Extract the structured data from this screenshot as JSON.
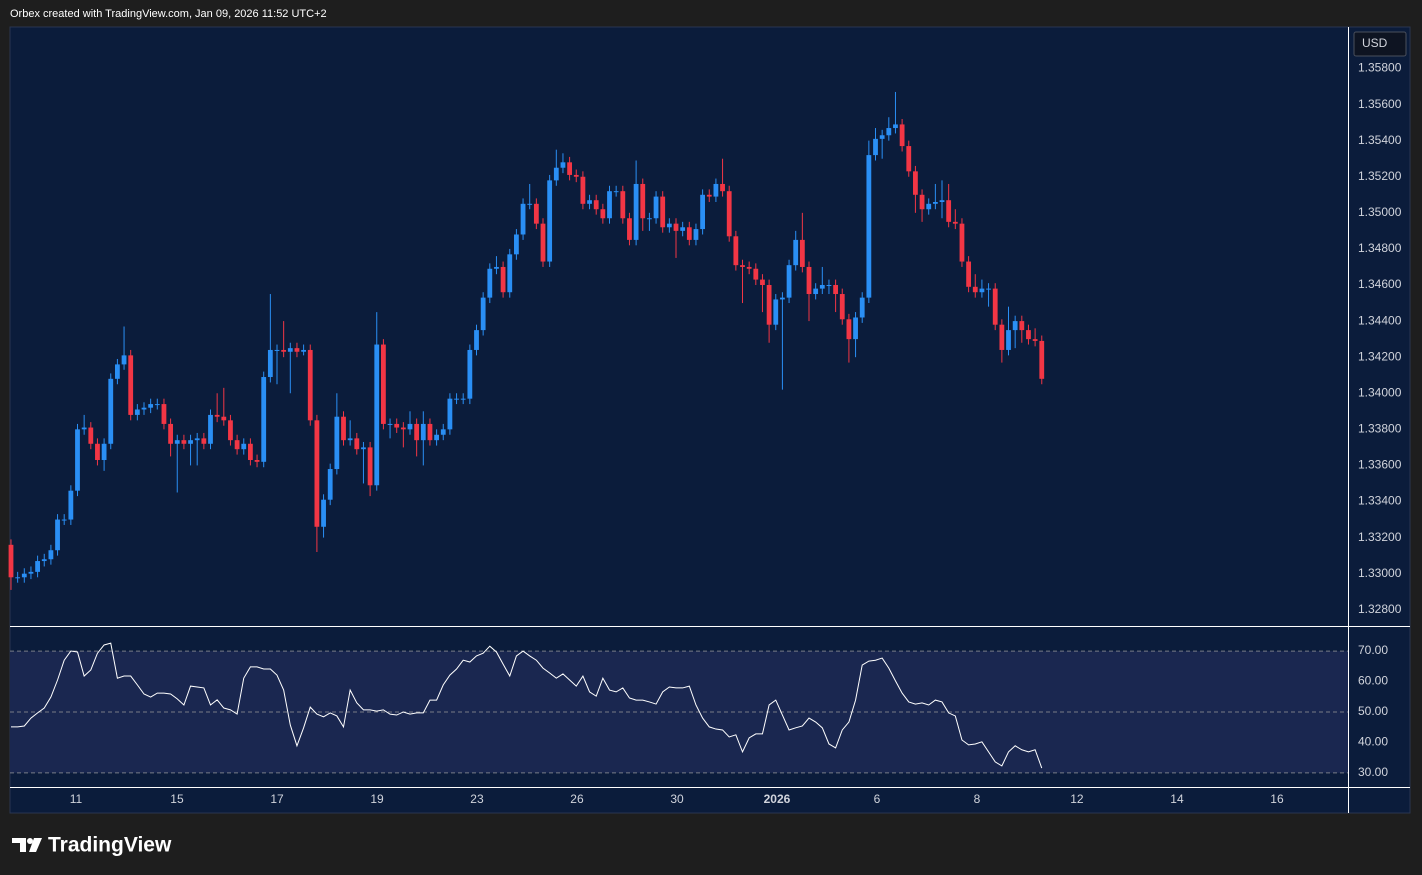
{
  "header": "Orbex created with TradingView.com, Jan 09, 2026 11:52 UTC+2",
  "brand": "TradingView",
  "chart_data": [
    {
      "type": "candlestick",
      "currency": "USD",
      "up_color": "#2a8ff5",
      "down_color": "#f23645",
      "grid": false,
      "x": [
        0,
        1,
        2,
        3,
        4,
        5,
        6,
        7,
        8,
        9,
        10,
        11,
        12,
        13,
        14,
        15,
        16,
        17,
        18,
        19,
        20,
        21,
        22,
        23,
        24,
        25,
        26,
        27,
        28,
        29,
        30,
        31,
        32,
        33,
        34,
        35,
        36,
        37,
        38,
        39,
        40,
        41,
        42,
        43,
        44,
        45,
        46,
        47,
        48,
        49,
        50,
        51,
        52,
        53,
        54,
        55,
        56,
        57,
        58,
        59,
        60,
        61,
        62,
        63,
        64,
        65,
        66,
        67,
        68,
        69,
        70,
        71,
        72,
        73,
        74,
        75,
        76,
        77,
        78,
        79,
        80,
        81,
        82,
        83,
        84,
        85,
        86,
        87,
        88,
        89,
        90,
        91,
        92,
        93,
        94,
        95,
        96,
        97,
        98,
        99,
        100,
        101,
        102,
        103,
        104,
        105,
        106,
        107,
        108,
        109,
        110,
        111,
        112,
        113,
        114,
        115,
        116,
        117,
        118,
        119,
        120,
        121,
        122,
        123,
        124,
        125,
        126,
        127,
        128,
        129,
        130,
        131,
        132,
        133,
        134,
        135,
        136,
        137,
        138,
        139,
        140,
        141,
        142,
        143,
        144,
        145,
        146,
        147,
        148,
        149,
        150,
        151,
        152,
        153,
        154,
        155
      ],
      "open": [
        1.3316,
        1.3298,
        1.3298,
        1.33,
        1.3301,
        1.3307,
        1.3308,
        1.3313,
        1.333,
        1.333,
        1.3346,
        1.338,
        1.3381,
        1.3372,
        1.3363,
        1.3372,
        1.3408,
        1.3416,
        1.3421,
        1.3388,
        1.3391,
        1.3392,
        1.3394,
        1.3394,
        1.3383,
        1.3372,
        1.3374,
        1.3372,
        1.3374,
        1.3375,
        1.3372,
        1.3388,
        1.3387,
        1.3385,
        1.3374,
        1.3369,
        1.3372,
        1.3363,
        1.3362,
        1.3409,
        1.3424,
        1.3424,
        1.3423,
        1.3425,
        1.3423,
        1.3424,
        1.3385,
        1.3326,
        1.3341,
        1.3358,
        1.3387,
        1.3374,
        1.3375,
        1.3369,
        1.337,
        1.3349,
        1.3427,
        1.3383,
        1.3383,
        1.3381,
        1.338,
        1.3383,
        1.3374,
        1.3383,
        1.3374,
        1.3377,
        1.338,
        1.3397,
        1.3397,
        1.3397,
        1.3424,
        1.3435,
        1.3453,
        1.3469,
        1.347,
        1.3456,
        1.3477,
        1.3488,
        1.3505,
        1.3505,
        1.3494,
        1.3473,
        1.3518,
        1.3525,
        1.3528,
        1.3521,
        1.352,
        1.3505,
        1.3507,
        1.3502,
        1.3497,
        1.3512,
        1.3512,
        1.3497,
        1.3485,
        1.3516,
        1.3497,
        1.3497,
        1.3509,
        1.3492,
        1.3494,
        1.349,
        1.3492,
        1.3485,
        1.3491,
        1.351,
        1.3509,
        1.3516,
        1.3512,
        1.3487,
        1.3471,
        1.347,
        1.3469,
        1.3463,
        1.346,
        1.3438,
        1.3452,
        1.3453,
        1.3471,
        1.3485,
        1.347,
        1.3455,
        1.3458,
        1.346,
        1.346,
        1.3455,
        1.3441,
        1.343,
        1.3442,
        1.3453,
        1.3532,
        1.3541,
        1.3543,
        1.3547,
        1.3549,
        1.3537,
        1.3523,
        1.351,
        1.3502,
        1.3505,
        1.3506,
        1.3507,
        1.3495,
        1.3494,
        1.3473,
        1.3459,
        1.3456,
        1.3458,
        1.3458,
        1.3438,
        1.3424,
        1.3435,
        1.344,
        1.3435,
        1.343,
        1.3429
      ],
      "high": [
        1.3319,
        1.3301,
        1.3303,
        1.3304,
        1.331,
        1.3311,
        1.3316,
        1.3333,
        1.3333,
        1.3349,
        1.3383,
        1.3388,
        1.3384,
        1.3375,
        1.3375,
        1.3411,
        1.3419,
        1.3437,
        1.3424,
        1.3394,
        1.3395,
        1.3397,
        1.3397,
        1.3397,
        1.3386,
        1.3377,
        1.3377,
        1.3377,
        1.3378,
        1.3378,
        1.3391,
        1.34,
        1.3403,
        1.3388,
        1.3377,
        1.3375,
        1.3375,
        1.3366,
        1.3412,
        1.3455,
        1.3427,
        1.344,
        1.3428,
        1.3428,
        1.3427,
        1.3427,
        1.3388,
        1.3344,
        1.3361,
        1.34,
        1.339,
        1.3385,
        1.3378,
        1.3373,
        1.3373,
        1.3445,
        1.343,
        1.3386,
        1.3386,
        1.3384,
        1.339,
        1.3386,
        1.339,
        1.3386,
        1.338,
        1.3383,
        1.34,
        1.34,
        1.34,
        1.3427,
        1.3438,
        1.3456,
        1.3472,
        1.3476,
        1.3473,
        1.348,
        1.3491,
        1.3508,
        1.3516,
        1.3508,
        1.3497,
        1.3521,
        1.3535,
        1.3533,
        1.3531,
        1.3524,
        1.3523,
        1.351,
        1.351,
        1.3505,
        1.3515,
        1.3515,
        1.3515,
        1.35,
        1.3529,
        1.3519,
        1.35,
        1.3512,
        1.3512,
        1.3497,
        1.3497,
        1.3495,
        1.3495,
        1.3494,
        1.3513,
        1.3513,
        1.3519,
        1.353,
        1.3515,
        1.349,
        1.3474,
        1.3473,
        1.3472,
        1.3466,
        1.3463,
        1.3455,
        1.3456,
        1.3474,
        1.349,
        1.35,
        1.3473,
        1.3461,
        1.347,
        1.3463,
        1.3463,
        1.3458,
        1.3444,
        1.3445,
        1.3456,
        1.354,
        1.3547,
        1.3546,
        1.3553,
        1.3567,
        1.3552,
        1.354,
        1.3526,
        1.3513,
        1.3508,
        1.3516,
        1.3518,
        1.3516,
        1.3502,
        1.3497,
        1.3476,
        1.3466,
        1.3463,
        1.3461,
        1.3461,
        1.3441,
        1.3448,
        1.3443,
        1.3443,
        1.3438,
        1.3436,
        1.3432
      ],
      "low": [
        1.3291,
        1.3295,
        1.3295,
        1.3297,
        1.3298,
        1.3304,
        1.3305,
        1.331,
        1.3327,
        1.3327,
        1.3343,
        1.3377,
        1.3369,
        1.336,
        1.3357,
        1.3369,
        1.3405,
        1.3413,
        1.3385,
        1.3385,
        1.3388,
        1.3389,
        1.3391,
        1.338,
        1.3365,
        1.3345,
        1.3369,
        1.336,
        1.336,
        1.3369,
        1.3369,
        1.3384,
        1.3382,
        1.3371,
        1.3366,
        1.3366,
        1.336,
        1.3359,
        1.3359,
        1.3406,
        1.3405,
        1.342,
        1.34,
        1.342,
        1.3421,
        1.3382,
        1.3312,
        1.332,
        1.3338,
        1.3355,
        1.3371,
        1.3371,
        1.3366,
        1.335,
        1.3343,
        1.3346,
        1.338,
        1.3375,
        1.3378,
        1.337,
        1.3377,
        1.3365,
        1.336,
        1.3371,
        1.3371,
        1.3374,
        1.3377,
        1.3394,
        1.3394,
        1.3394,
        1.3421,
        1.3432,
        1.345,
        1.3466,
        1.3453,
        1.3453,
        1.3474,
        1.3485,
        1.3502,
        1.3491,
        1.347,
        1.347,
        1.3515,
        1.3522,
        1.3518,
        1.3517,
        1.3502,
        1.3502,
        1.3499,
        1.3494,
        1.3494,
        1.3509,
        1.3494,
        1.3482,
        1.3482,
        1.349,
        1.349,
        1.3494,
        1.3489,
        1.3489,
        1.3475,
        1.3487,
        1.3482,
        1.3482,
        1.3488,
        1.3506,
        1.3506,
        1.3509,
        1.3484,
        1.3468,
        1.345,
        1.3466,
        1.346,
        1.3445,
        1.3428,
        1.3435,
        1.3402,
        1.345,
        1.3468,
        1.3467,
        1.344,
        1.3452,
        1.3455,
        1.3455,
        1.3445,
        1.3438,
        1.3417,
        1.342,
        1.3439,
        1.345,
        1.3529,
        1.353,
        1.354,
        1.3544,
        1.3534,
        1.352,
        1.35,
        1.3495,
        1.3499,
        1.3502,
        1.3497,
        1.3492,
        1.3491,
        1.347,
        1.3456,
        1.3453,
        1.3453,
        1.3448,
        1.3435,
        1.3417,
        1.3421,
        1.3425,
        1.3428,
        1.3427,
        1.3426,
        1.3405
      ],
      "close": [
        1.3298,
        1.3298,
        1.33,
        1.3301,
        1.3307,
        1.3308,
        1.3313,
        1.333,
        1.333,
        1.3346,
        1.338,
        1.3381,
        1.3372,
        1.3363,
        1.3372,
        1.3408,
        1.3416,
        1.3421,
        1.3388,
        1.3391,
        1.3392,
        1.3394,
        1.3394,
        1.3383,
        1.3372,
        1.3374,
        1.3372,
        1.3374,
        1.3375,
        1.3372,
        1.3388,
        1.3387,
        1.3385,
        1.3374,
        1.3369,
        1.3372,
        1.3363,
        1.3362,
        1.3409,
        1.3424,
        1.3424,
        1.3423,
        1.3425,
        1.3423,
        1.3424,
        1.3385,
        1.3326,
        1.3341,
        1.3358,
        1.3387,
        1.3374,
        1.3375,
        1.3369,
        1.337,
        1.3349,
        1.3427,
        1.3383,
        1.3383,
        1.3381,
        1.338,
        1.3383,
        1.3374,
        1.3383,
        1.3374,
        1.3377,
        1.338,
        1.3397,
        1.3397,
        1.3397,
        1.3424,
        1.3435,
        1.3453,
        1.3469,
        1.347,
        1.3456,
        1.3477,
        1.3488,
        1.3505,
        1.3505,
        1.3494,
        1.3473,
        1.3518,
        1.3525,
        1.3528,
        1.3521,
        1.352,
        1.3505,
        1.3507,
        1.3502,
        1.3497,
        1.3512,
        1.3512,
        1.3497,
        1.3485,
        1.3516,
        1.3497,
        1.3497,
        1.3509,
        1.3492,
        1.3494,
        1.349,
        1.3492,
        1.3485,
        1.3491,
        1.351,
        1.3509,
        1.3516,
        1.3512,
        1.3487,
        1.3471,
        1.347,
        1.3469,
        1.3463,
        1.346,
        1.3438,
        1.3452,
        1.3453,
        1.3471,
        1.3485,
        1.347,
        1.3455,
        1.3458,
        1.346,
        1.346,
        1.3455,
        1.3441,
        1.343,
        1.3442,
        1.3453,
        1.3532,
        1.3541,
        1.3543,
        1.3547,
        1.3549,
        1.3537,
        1.3523,
        1.351,
        1.3502,
        1.3505,
        1.3506,
        1.3507,
        1.3495,
        1.3494,
        1.3473,
        1.3459,
        1.3456,
        1.3458,
        1.3458,
        1.3438,
        1.3424,
        1.3435,
        1.344,
        1.3435,
        1.343,
        1.3429,
        1.3408
      ],
      "xlim": [
        -0.15,
        201.05
      ],
      "xticks": [
        {
          "value": 9.77,
          "label": "11"
        },
        {
          "value": 24.96,
          "label": "15"
        },
        {
          "value": 40.0,
          "label": "17"
        },
        {
          "value": 55.04,
          "label": "19"
        },
        {
          "value": 70.07,
          "label": "23"
        },
        {
          "value": 85.11,
          "label": "26"
        },
        {
          "value": 100.15,
          "label": "30"
        },
        {
          "value": 115.18,
          "label": "2026",
          "bold": true
        },
        {
          "value": 130.22,
          "label": "6"
        },
        {
          "value": 145.26,
          "label": "8"
        },
        {
          "value": 160.29,
          "label": "12"
        },
        {
          "value": 175.33,
          "label": "14"
        },
        {
          "value": 190.37,
          "label": "16"
        }
      ],
      "ylim": [
        1.3271,
        1.3603
      ],
      "yticks": [
        {
          "value": 1.328,
          "label": "1.32800"
        },
        {
          "value": 1.33,
          "label": "1.33000"
        },
        {
          "value": 1.332,
          "label": "1.33200"
        },
        {
          "value": 1.334,
          "label": "1.33400"
        },
        {
          "value": 1.336,
          "label": "1.33600"
        },
        {
          "value": 1.338,
          "label": "1.33800"
        },
        {
          "value": 1.34,
          "label": "1.34000"
        },
        {
          "value": 1.342,
          "label": "1.34200"
        },
        {
          "value": 1.344,
          "label": "1.34400"
        },
        {
          "value": 1.346,
          "label": "1.34600"
        },
        {
          "value": 1.348,
          "label": "1.34800"
        },
        {
          "value": 1.35,
          "label": "1.35000"
        },
        {
          "value": 1.352,
          "label": "1.35200"
        },
        {
          "value": 1.354,
          "label": "1.35400"
        },
        {
          "value": 1.356,
          "label": "1.35600"
        },
        {
          "value": 1.358,
          "label": "1.35800"
        }
      ]
    },
    {
      "type": "line",
      "color": "#ffffff",
      "values": [
        45.1,
        45.1,
        45.4,
        48.0,
        49.7,
        51.3,
        54.9,
        60.5,
        67.0,
        70.0,
        69.7,
        61.8,
        63.8,
        69.3,
        72.0,
        72.6,
        61.1,
        61.8,
        61.8,
        58.9,
        55.9,
        54.9,
        56.2,
        56.2,
        55.9,
        54.3,
        52.3,
        58.5,
        58.2,
        57.9,
        52.3,
        54.0,
        51.3,
        50.7,
        49.3,
        61.1,
        64.8,
        64.8,
        64.1,
        64.1,
        62.1,
        57.2,
        45.7,
        38.9,
        44.8,
        51.6,
        49.3,
        48.4,
        49.7,
        48.7,
        45.1,
        57.2,
        53.0,
        50.7,
        50.7,
        50.3,
        50.7,
        49.3,
        49.0,
        50.0,
        49.3,
        49.7,
        49.7,
        53.9,
        53.9,
        58.9,
        62.1,
        64.1,
        67.0,
        66.4,
        68.4,
        69.3,
        71.6,
        69.7,
        65.7,
        61.8,
        68.4,
        70.0,
        68.4,
        67.0,
        64.4,
        62.8,
        61.1,
        62.5,
        60.5,
        58.5,
        61.8,
        56.6,
        55.2,
        61.1,
        57.2,
        56.6,
        57.9,
        54.6,
        53.9,
        53.9,
        53.3,
        52.6,
        56.6,
        58.2,
        57.9,
        57.9,
        58.5,
        52.3,
        48.0,
        45.1,
        44.4,
        44.1,
        41.8,
        42.5,
        36.9,
        41.5,
        42.8,
        42.8,
        52.3,
        53.9,
        49.0,
        44.1,
        44.8,
        45.4,
        48.0,
        46.7,
        44.8,
        39.5,
        38.2,
        44.1,
        46.7,
        53.9,
        65.4,
        66.7,
        67.0,
        67.7,
        64.4,
        60.2,
        56.2,
        53.3,
        52.6,
        53.0,
        52.3,
        53.9,
        53.3,
        49.7,
        48.7,
        40.8,
        39.2,
        39.5,
        40.2,
        36.9,
        33.6,
        32.3,
        36.9,
        38.9,
        37.6,
        36.9,
        37.6,
        31.6
      ],
      "ylim": [
        25.7,
        77.9
      ],
      "yticks": [
        {
          "value": 30,
          "label": "30.00"
        },
        {
          "value": 40,
          "label": "40.00"
        },
        {
          "value": 50,
          "label": "50.00"
        },
        {
          "value": 60,
          "label": "60.00"
        },
        {
          "value": 70,
          "label": "70.00"
        }
      ],
      "levels": [
        30,
        50,
        70
      ],
      "band": [
        30,
        70
      ],
      "band_color": "#1a2750"
    }
  ]
}
